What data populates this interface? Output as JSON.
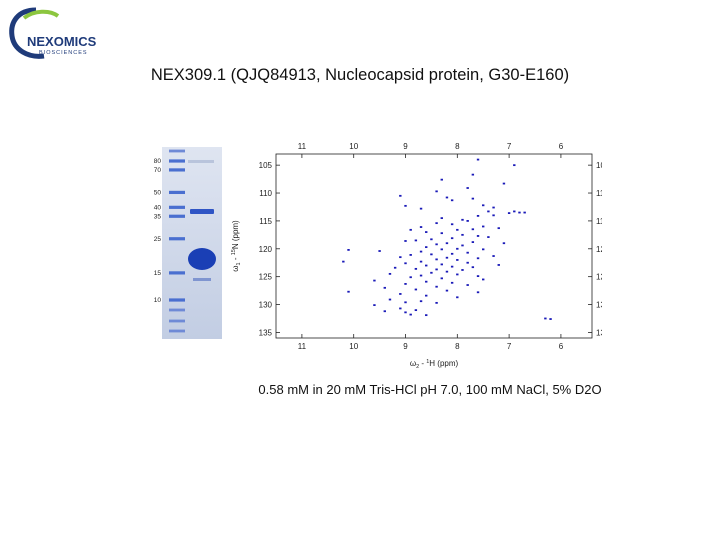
{
  "logo": {
    "name": "NEXOMICS",
    "sub": "BIOSCIENCES",
    "colors": {
      "ring": "#1f3b7a",
      "swoosh": "#8cc63f",
      "text": "#1f3b7a"
    }
  },
  "title": "NEX309.1 (QJQ84913, Nucleocapsid protein, G30-E160)",
  "gel": {
    "marker_labels": [
      "80",
      "70",
      "50",
      "40",
      "35",
      "25",
      "15",
      "10"
    ],
    "marker_kda": [
      80,
      70,
      50,
      40,
      35,
      25,
      15,
      10
    ],
    "colors": {
      "background": "#c9d3e6",
      "band": "#1a3fb5"
    }
  },
  "caption": "0.58 mM in 20 mM Tris-HCl pH 7.0, 100 mM NaCl, 5% D2O",
  "chart_data": {
    "type": "scatter",
    "title": "",
    "xlabel": "ω2 - 1H (ppm)",
    "ylabel": "ω1 - 15N (ppm)",
    "xlabel_parts": {
      "omega": "ω",
      "sub": "2",
      "dash": " - ",
      "sup": "1",
      "nucleus": "H (ppm)"
    },
    "ylabel_parts": {
      "omega": "ω",
      "sub": "1",
      "dash": " - ",
      "sup": "15",
      "nucleus": "N (ppm)"
    },
    "xlim": [
      11.5,
      5.4
    ],
    "ylim": [
      103,
      136
    ],
    "x_ticks": [
      11,
      10,
      9,
      8,
      7,
      6
    ],
    "y_ticks": [
      105,
      110,
      115,
      120,
      125,
      130,
      135
    ],
    "axis_reversed": {
      "x": true,
      "y": true
    },
    "grid": false,
    "peak_color": "#1a1ab8",
    "points": [
      [
        7.6,
        104.0
      ],
      [
        6.9,
        105.0
      ],
      [
        7.7,
        106.7
      ],
      [
        8.3,
        107.6
      ],
      [
        7.1,
        108.3
      ],
      [
        7.8,
        109.1
      ],
      [
        8.4,
        109.7
      ],
      [
        9.1,
        110.5
      ],
      [
        8.2,
        110.8
      ],
      [
        7.7,
        111.0
      ],
      [
        8.1,
        111.3
      ],
      [
        7.5,
        112.2
      ],
      [
        9.0,
        112.3
      ],
      [
        7.3,
        112.6
      ],
      [
        8.7,
        112.8
      ],
      [
        7.4,
        113.3
      ],
      [
        6.8,
        113.5
      ],
      [
        6.7,
        113.5
      ],
      [
        7.0,
        113.6
      ],
      [
        6.9,
        113.3
      ],
      [
        7.3,
        114.0
      ],
      [
        7.6,
        114.1
      ],
      [
        8.3,
        114.5
      ],
      [
        7.9,
        114.8
      ],
      [
        7.8,
        115.0
      ],
      [
        8.4,
        115.4
      ],
      [
        8.1,
        115.6
      ],
      [
        7.5,
        116.0
      ],
      [
        8.7,
        116.1
      ],
      [
        7.2,
        116.3
      ],
      [
        7.7,
        116.5
      ],
      [
        8.0,
        116.6
      ],
      [
        8.9,
        116.6
      ],
      [
        8.6,
        117.0
      ],
      [
        8.3,
        117.2
      ],
      [
        7.9,
        117.5
      ],
      [
        7.6,
        117.7
      ],
      [
        7.4,
        117.9
      ],
      [
        8.1,
        118.1
      ],
      [
        8.5,
        118.3
      ],
      [
        8.8,
        118.5
      ],
      [
        9.0,
        118.6
      ],
      [
        7.7,
        118.8
      ],
      [
        8.2,
        119.0
      ],
      [
        7.1,
        119.0
      ],
      [
        8.4,
        119.2
      ],
      [
        7.9,
        119.4
      ],
      [
        8.6,
        119.7
      ],
      [
        8.0,
        120.0
      ],
      [
        8.3,
        120.1
      ],
      [
        7.5,
        120.1
      ],
      [
        10.1,
        120.2
      ],
      [
        9.5,
        120.4
      ],
      [
        8.7,
        120.5
      ],
      [
        7.8,
        120.7
      ],
      [
        8.1,
        120.9
      ],
      [
        8.5,
        121.0
      ],
      [
        8.9,
        121.1
      ],
      [
        7.3,
        121.3
      ],
      [
        9.1,
        121.5
      ],
      [
        8.2,
        121.6
      ],
      [
        7.6,
        121.7
      ],
      [
        8.4,
        121.9
      ],
      [
        8.0,
        122.0
      ],
      [
        10.2,
        122.3
      ],
      [
        8.7,
        122.3
      ],
      [
        7.8,
        122.5
      ],
      [
        9.0,
        122.6
      ],
      [
        8.3,
        122.8
      ],
      [
        7.2,
        122.9
      ],
      [
        8.6,
        123.0
      ],
      [
        8.1,
        123.2
      ],
      [
        7.7,
        123.3
      ],
      [
        9.2,
        123.4
      ],
      [
        8.8,
        123.6
      ],
      [
        8.4,
        123.7
      ],
      [
        7.9,
        123.8
      ],
      [
        8.2,
        124.1
      ],
      [
        8.5,
        124.3
      ],
      [
        9.3,
        124.5
      ],
      [
        8.0,
        124.6
      ],
      [
        8.7,
        124.8
      ],
      [
        7.6,
        124.9
      ],
      [
        8.9,
        125.1
      ],
      [
        8.3,
        125.3
      ],
      [
        7.5,
        125.5
      ],
      [
        9.6,
        125.7
      ],
      [
        8.6,
        125.9
      ],
      [
        8.1,
        126.1
      ],
      [
        9.0,
        126.3
      ],
      [
        7.8,
        126.5
      ],
      [
        8.4,
        126.8
      ],
      [
        9.4,
        127.0
      ],
      [
        8.8,
        127.3
      ],
      [
        8.2,
        127.5
      ],
      [
        10.1,
        127.7
      ],
      [
        7.6,
        127.8
      ],
      [
        9.1,
        128.1
      ],
      [
        8.6,
        128.4
      ],
      [
        8.0,
        128.7
      ],
      [
        9.3,
        129.1
      ],
      [
        8.7,
        129.4
      ],
      [
        9.0,
        129.6
      ],
      [
        8.4,
        129.7
      ],
      [
        9.6,
        130.1
      ],
      [
        9.1,
        130.7
      ],
      [
        8.8,
        131.0
      ],
      [
        9.0,
        131.4
      ],
      [
        8.9,
        131.8
      ],
      [
        9.4,
        131.2
      ],
      [
        8.6,
        131.9
      ],
      [
        6.3,
        132.5
      ],
      [
        6.2,
        132.6
      ]
    ]
  }
}
